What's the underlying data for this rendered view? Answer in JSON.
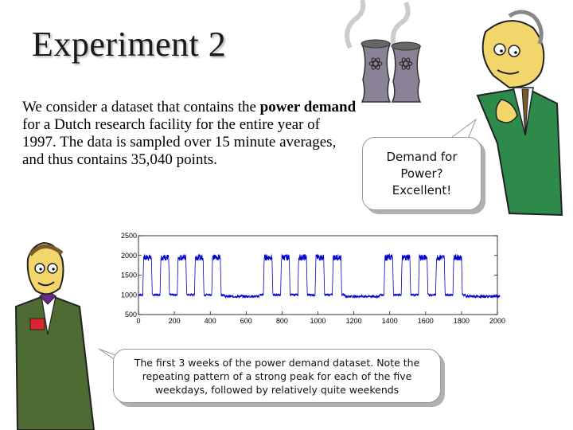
{
  "slide": {
    "title": "Experiment 2",
    "intro_parts": [
      {
        "text": "We consider a dataset that contains the ",
        "bold": false
      },
      {
        "text": "power demand",
        "bold": true
      },
      {
        "text": " for a Dutch research facility for the entire year of 1997. The data is sampled over 15 minute averages, and thus contains 35,040 points.",
        "bold": false
      }
    ],
    "bubble_top": "Demand for\nPower?\nExcellent!",
    "bubble_bottom": "The first 3 weeks of the power demand dataset. Note the repeating pattern of a strong peak for each of the five weekdays, followed by relatively quite weekends"
  },
  "chart_data": {
    "type": "line",
    "title": "",
    "xlabel": "",
    "ylabel": "",
    "xlim": [
      0,
      2000
    ],
    "ylim": [
      500,
      2500
    ],
    "x_ticks": [
      0,
      200,
      400,
      600,
      800,
      1000,
      1200,
      1400,
      1600,
      1800,
      2000
    ],
    "y_ticks": [
      500,
      1000,
      1500,
      2000,
      2500
    ],
    "grid": false,
    "line_color": "#0000cc",
    "pattern": {
      "samples_per_day": 96,
      "n_samples": 2016,
      "weekday_peak": 1950,
      "weekday_base": 1000,
      "weekend_level": 960,
      "weekday_pattern": [
        1,
        1,
        1,
        1,
        1,
        0,
        0
      ]
    }
  },
  "illustrations": {
    "top_right": "cartoon-character-with-cooling-towers",
    "bottom_left": "cartoon-character-in-suit",
    "tower_color": "#8a8296",
    "suit_top_color": "#2e8a4a",
    "suit_bottom_color": "#4d6b33"
  }
}
